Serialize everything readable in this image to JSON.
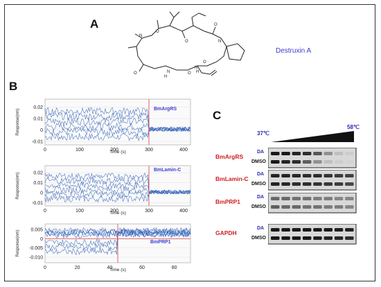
{
  "panels": {
    "a": {
      "letter": "A",
      "compound_name": "Destruxin A"
    },
    "b": {
      "letter": "B",
      "plots": [
        {
          "label": "BmArgRS",
          "ylabel": "Response(nm)",
          "xlabel": "Time (s)",
          "yticks": [
            "0.02",
            "0.01",
            "0",
            "-0.01"
          ],
          "xticks": [
            "0",
            "100",
            "200",
            "300",
            "400"
          ],
          "xlim": [
            0,
            420
          ],
          "ylim": [
            -0.013,
            0.027
          ],
          "marker_x": 300
        },
        {
          "label": "BmLamin-C",
          "ylabel": "Response(nm)",
          "xlabel": "Time (s)",
          "yticks": [
            "0.02",
            "0.01",
            "0",
            "-0.01"
          ],
          "xticks": [
            "0",
            "100",
            "200",
            "300",
            "400"
          ],
          "xlim": [
            0,
            420
          ],
          "ylim": [
            -0.013,
            0.027
          ],
          "marker_x": 300
        },
        {
          "label": "BmPRP1",
          "ylabel": "Response(nm)",
          "xlabel": "Time (s)",
          "yticks": [
            "0.005",
            "0",
            "-0.005",
            "-0.010"
          ],
          "xticks": [
            "0",
            "20",
            "40",
            "60",
            "80"
          ],
          "xlim": [
            0,
            90
          ],
          "ylim": [
            -0.013,
            0.008
          ],
          "marker_x": 45
        }
      ]
    },
    "c": {
      "letter": "C",
      "temp_low": "37℃",
      "temp_high": "58℃",
      "blots": [
        {
          "gene": "BmArgRS",
          "lanes": [
            "DA",
            "DMSO"
          ]
        },
        {
          "gene": "BmLamin-C",
          "lanes": [
            "DA",
            "DMSO"
          ]
        },
        {
          "gene": "BmPRP1",
          "lanes": [
            "DA",
            "DMSO"
          ]
        },
        {
          "gene": "GAPDH",
          "lanes": [
            "DA",
            "DMSO"
          ]
        }
      ]
    }
  },
  "colors": {
    "trace": "#2f5fb8",
    "marker": "#e05050",
    "label_blue": "#3b3bd0",
    "gene_red": "#d02020"
  }
}
